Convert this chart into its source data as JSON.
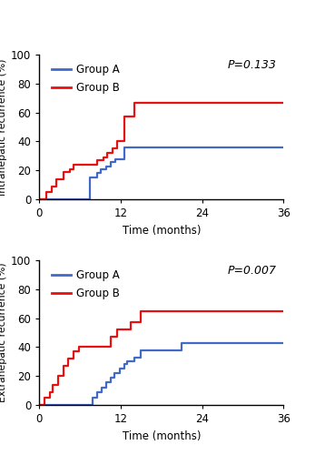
{
  "color_A": "#4169C8",
  "color_B": "#E81010",
  "plot1": {
    "title_pval": "P=0.133",
    "ylabel": "Intrahepatic recurrence (%)",
    "xlabel": "Time (months)",
    "ylim": [
      0,
      100
    ],
    "xlim": [
      0,
      36
    ],
    "xticks": [
      0,
      12,
      24,
      36
    ],
    "yticks": [
      0,
      20,
      40,
      60,
      80,
      100
    ],
    "group_A_x": [
      0,
      6.5,
      7.5,
      8.5,
      9.0,
      9.8,
      10.5,
      11.2,
      12.5,
      36
    ],
    "group_A_y": [
      0,
      0,
      15,
      18,
      21,
      23,
      26,
      28,
      36,
      36
    ],
    "group_B_x": [
      0,
      1.0,
      1.8,
      2.5,
      3.5,
      4.5,
      5.0,
      8.5,
      9.5,
      10.0,
      10.8,
      11.5,
      12.5,
      14.0,
      36
    ],
    "group_B_y": [
      0,
      5,
      9,
      14,
      19,
      21,
      24,
      27,
      29,
      32,
      35,
      40,
      57,
      67,
      67
    ]
  },
  "plot2": {
    "title_pval": "P=0.007",
    "ylabel": "Extrahepatic recurrence (%)",
    "xlabel": "Time (months)",
    "ylim": [
      0,
      100
    ],
    "xlim": [
      0,
      36
    ],
    "xticks": [
      0,
      12,
      24,
      36
    ],
    "yticks": [
      0,
      20,
      40,
      60,
      80,
      100
    ],
    "group_A_x": [
      0,
      7.0,
      7.8,
      8.5,
      9.2,
      9.8,
      10.5,
      11.0,
      11.8,
      12.5,
      13.0,
      14.0,
      15.0,
      21.0,
      36
    ],
    "group_A_y": [
      0,
      0,
      5,
      9,
      12,
      16,
      19,
      22,
      25,
      28,
      30,
      33,
      38,
      43,
      43
    ],
    "group_B_x": [
      0,
      0.8,
      1.5,
      2.0,
      2.8,
      3.5,
      4.2,
      5.0,
      5.8,
      10.5,
      11.5,
      13.5,
      15.0,
      36
    ],
    "group_B_y": [
      0,
      5,
      9,
      14,
      20,
      27,
      32,
      37,
      40,
      47,
      52,
      57,
      65,
      65
    ]
  },
  "legend_A": "Group A",
  "legend_B": "Group B",
  "bg_color": "#ffffff"
}
